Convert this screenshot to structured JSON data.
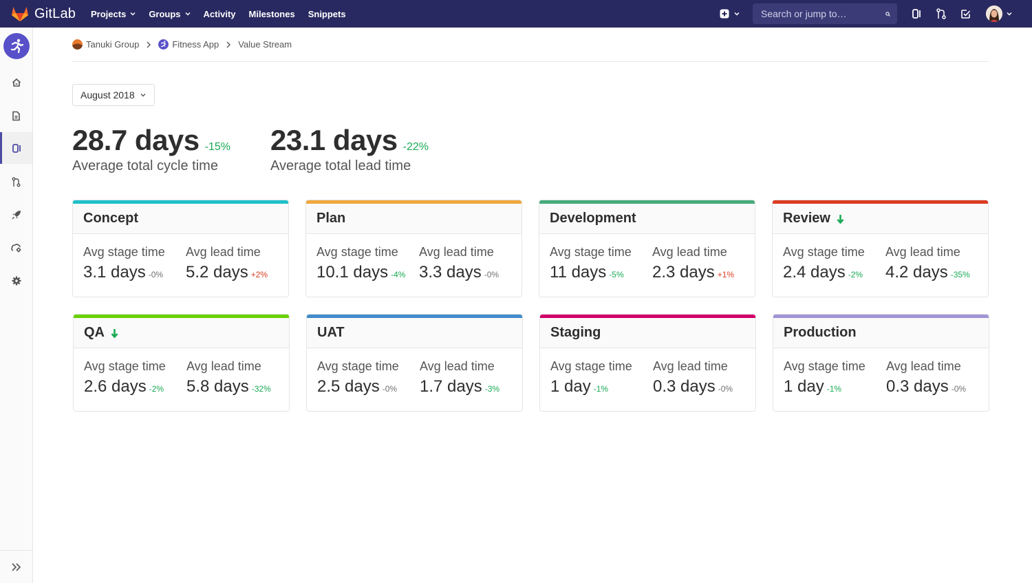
{
  "navbar": {
    "brand": "GitLab",
    "links": [
      {
        "label": "Projects",
        "has_caret": true
      },
      {
        "label": "Groups",
        "has_caret": true
      },
      {
        "label": "Activity",
        "has_caret": false
      },
      {
        "label": "Milestones",
        "has_caret": false
      },
      {
        "label": "Snippets",
        "has_caret": false
      }
    ],
    "search_placeholder": "Search or jump to…",
    "icons": [
      "plus-square-icon",
      "search-icon",
      "issues-icon",
      "merge-request-icon",
      "todo-icon",
      "avatar"
    ]
  },
  "sidebar": {
    "items": [
      "project-avatar",
      "home-icon",
      "repository-icon",
      "issues-icon",
      "merge-request-icon",
      "rocket-icon",
      "operations-icon",
      "settings-icon"
    ],
    "active": "issues-icon",
    "collapse": "collapse-icon"
  },
  "breadcrumbs": [
    "Tanuki Group",
    "Fitness App",
    "Value Stream"
  ],
  "month_select": "August 2018",
  "metrics": [
    {
      "value": "28.7 days",
      "change": "-15%",
      "label": "Average total cycle time"
    },
    {
      "value": "23.1 days",
      "change": "-22%",
      "label": "Average total lead time"
    }
  ],
  "stage_labels": {
    "stage": "Avg stage time",
    "lead": "Avg lead time"
  },
  "stages": [
    {
      "name": "Concept",
      "color": "#1fc0c9",
      "arrow": false,
      "stage_time": "3.1 days",
      "stage_change": "-0%",
      "lead_time": "5.2 days",
      "lead_change": "+2%"
    },
    {
      "name": "Plan",
      "color": "#f0a740",
      "arrow": false,
      "stage_time": "10.1 days",
      "stage_change": "-4%",
      "lead_time": "3.3 days",
      "lead_change": "-0%"
    },
    {
      "name": "Development",
      "color": "#46ab7b",
      "arrow": false,
      "stage_time": "11 days",
      "stage_change": "-5%",
      "lead_time": "2.3 days",
      "lead_change": "+1%"
    },
    {
      "name": "Review",
      "color": "#db3b21",
      "arrow": true,
      "stage_time": "2.4 days",
      "stage_change": "-2%",
      "lead_time": "4.2 days",
      "lead_change": "-35%"
    },
    {
      "name": "QA",
      "color": "#69d100",
      "arrow": true,
      "stage_time": "2.6 days",
      "stage_change": "-2%",
      "lead_time": "5.8 days",
      "lead_change": "-32%"
    },
    {
      "name": "UAT",
      "color": "#428bca",
      "arrow": false,
      "stage_time": "2.5 days",
      "stage_change": "-0%",
      "lead_time": "1.7 days",
      "lead_change": "-3%"
    },
    {
      "name": "Staging",
      "color": "#d10069",
      "arrow": false,
      "stage_time": "1 day",
      "stage_change": "-1%",
      "lead_time": "0.3 days",
      "lead_change": "-0%"
    },
    {
      "name": "Production",
      "color": "#a295d6",
      "arrow": false,
      "stage_time": "1 day",
      "stage_change": "-1%",
      "lead_time": "0.3 days",
      "lead_change": "-0%"
    }
  ]
}
